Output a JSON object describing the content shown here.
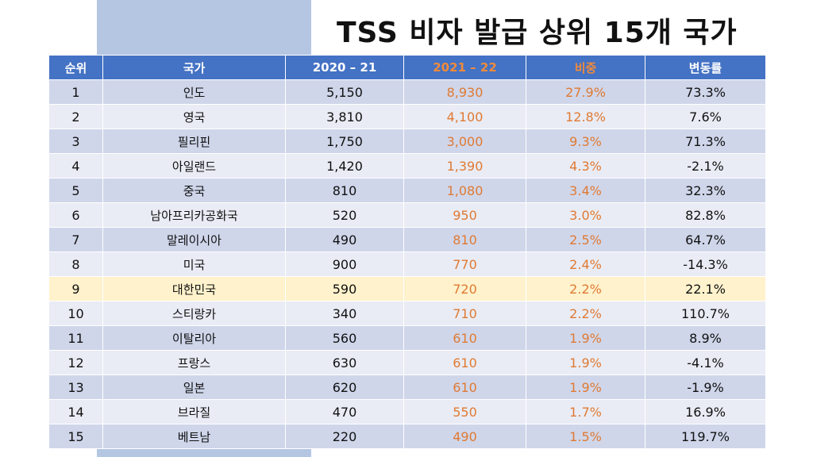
{
  "title": "TSS 비자 발급 상위 15개 국가",
  "colors": {
    "header_bg": "#4472c4",
    "accent_orange": "#e07a33",
    "highlight_row": "#fff2cc"
  },
  "table": {
    "headers": {
      "rank": "순위",
      "country": "국가",
      "y2020": "2020 – 21",
      "y2021": "2021 – 22",
      "share": "비중",
      "change": "변동률"
    },
    "rows": [
      {
        "rank": "1",
        "country": "인도",
        "y2020": "5,150",
        "y2021": "8,930",
        "share": "27.9%",
        "change": "73.3%"
      },
      {
        "rank": "2",
        "country": "영국",
        "y2020": "3,810",
        "y2021": "4,100",
        "share": "12.8%",
        "change": "7.6%"
      },
      {
        "rank": "3",
        "country": "필리핀",
        "y2020": "1,750",
        "y2021": "3,000",
        "share": "9.3%",
        "change": "71.3%"
      },
      {
        "rank": "4",
        "country": "아일랜드",
        "y2020": "1,420",
        "y2021": "1,390",
        "share": "4.3%",
        "change": "-2.1%"
      },
      {
        "rank": "5",
        "country": "중국",
        "y2020": "810",
        "y2021": "1,080",
        "share": "3.4%",
        "change": "32.3%"
      },
      {
        "rank": "6",
        "country": "남아프리카공화국",
        "y2020": "520",
        "y2021": "950",
        "share": "3.0%",
        "change": "82.8%"
      },
      {
        "rank": "7",
        "country": "말레이시아",
        "y2020": "490",
        "y2021": "810",
        "share": "2.5%",
        "change": "64.7%"
      },
      {
        "rank": "8",
        "country": "미국",
        "y2020": "900",
        "y2021": "770",
        "share": "2.4%",
        "change": "-14.3%"
      },
      {
        "rank": "9",
        "country": "대한민국",
        "y2020": "590",
        "y2021": "720",
        "share": "2.2%",
        "change": "22.1%"
      },
      {
        "rank": "10",
        "country": "스티랑카",
        "y2020": "340",
        "y2021": "710",
        "share": "2.2%",
        "change": "110.7%"
      },
      {
        "rank": "11",
        "country": "이탈리아",
        "y2020": "560",
        "y2021": "610",
        "share": "1.9%",
        "change": "8.9%"
      },
      {
        "rank": "12",
        "country": "프랑스",
        "y2020": "630",
        "y2021": "610",
        "share": "1.9%",
        "change": "-4.1%"
      },
      {
        "rank": "13",
        "country": "일본",
        "y2020": "620",
        "y2021": "610",
        "share": "1.9%",
        "change": "-1.9%"
      },
      {
        "rank": "14",
        "country": "브라질",
        "y2020": "470",
        "y2021": "550",
        "share": "1.7%",
        "change": "16.9%"
      },
      {
        "rank": "15",
        "country": "베트남",
        "y2020": "220",
        "y2021": "490",
        "share": "1.5%",
        "change": "119.7%"
      }
    ]
  }
}
